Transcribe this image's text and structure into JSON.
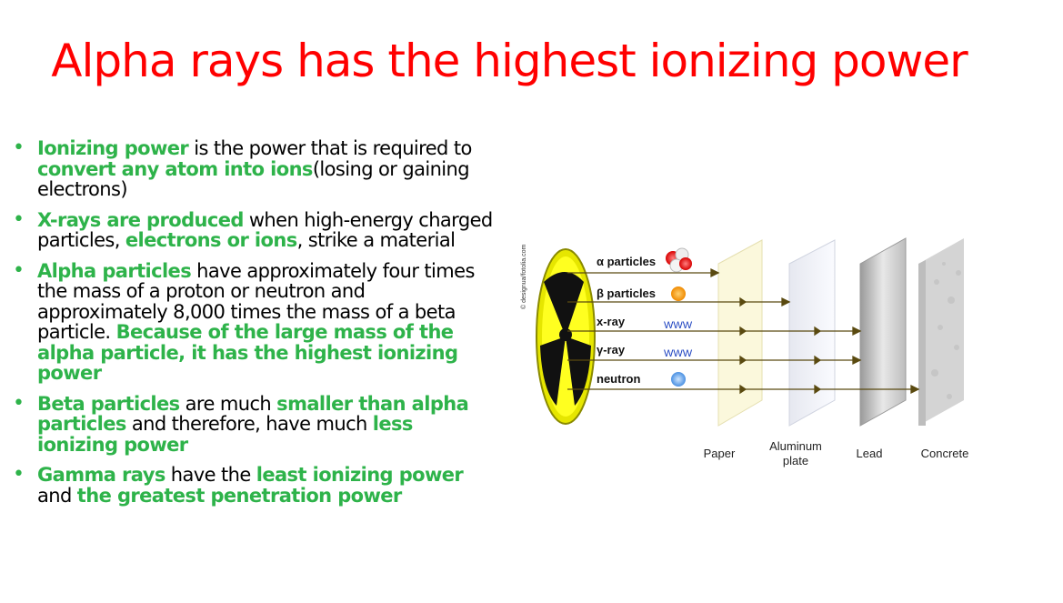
{
  "title": "Alpha rays has the highest ionizing power",
  "bullets": [
    {
      "parts": [
        {
          "text": "Ionizing power",
          "style": "g"
        },
        {
          "text": " is the power that is required to ",
          "style": ""
        },
        {
          "text": "convert any atom into ions",
          "style": "g"
        },
        {
          "text": "(losing or gaining electrons)",
          "style": ""
        }
      ]
    },
    {
      "parts": [
        {
          "text": "X-rays are produced",
          "style": "g"
        },
        {
          "text": " when high-energy charged particles, ",
          "style": ""
        },
        {
          "text": "electrons or ions",
          "style": "g"
        },
        {
          "text": ", strike a material",
          "style": ""
        }
      ]
    },
    {
      "parts": [
        {
          "text": "Alpha particles",
          "style": "g"
        },
        {
          "text": " have approximately four times the mass of a proton or neutron and approximately 8,000 times the mass of a beta particle. ",
          "style": ""
        },
        {
          "text": " Because of the large mass of the alpha particle, it has the highest ionizing power",
          "style": "g"
        }
      ]
    },
    {
      "parts": [
        {
          "text": "Beta particles",
          "style": "g"
        },
        {
          "text": " are much ",
          "style": ""
        },
        {
          "text": "smaller than alpha particles",
          "style": "g"
        },
        {
          "text": " and therefore, have much ",
          "style": ""
        },
        {
          "text": "less ionizing power",
          "style": "g"
        }
      ]
    },
    {
      "parts": [
        {
          "text": "Gamma rays",
          "style": "g"
        },
        {
          "text": " have the ",
          "style": ""
        },
        {
          "text": "least ionizing power",
          "style": "g"
        },
        {
          "text": " and ",
          "style": ""
        },
        {
          "text": "the greatest penetration power",
          "style": "g"
        }
      ]
    }
  ],
  "diagram": {
    "watermark": "© designua/fotolia.com",
    "rays": [
      "α particles",
      "β particles",
      "x-ray",
      "γ-ray",
      "neutron"
    ],
    "wave_glyph": "WWW",
    "barriers": [
      "Paper",
      "Aluminum",
      "plate",
      "Lead",
      "Concrete"
    ]
  }
}
